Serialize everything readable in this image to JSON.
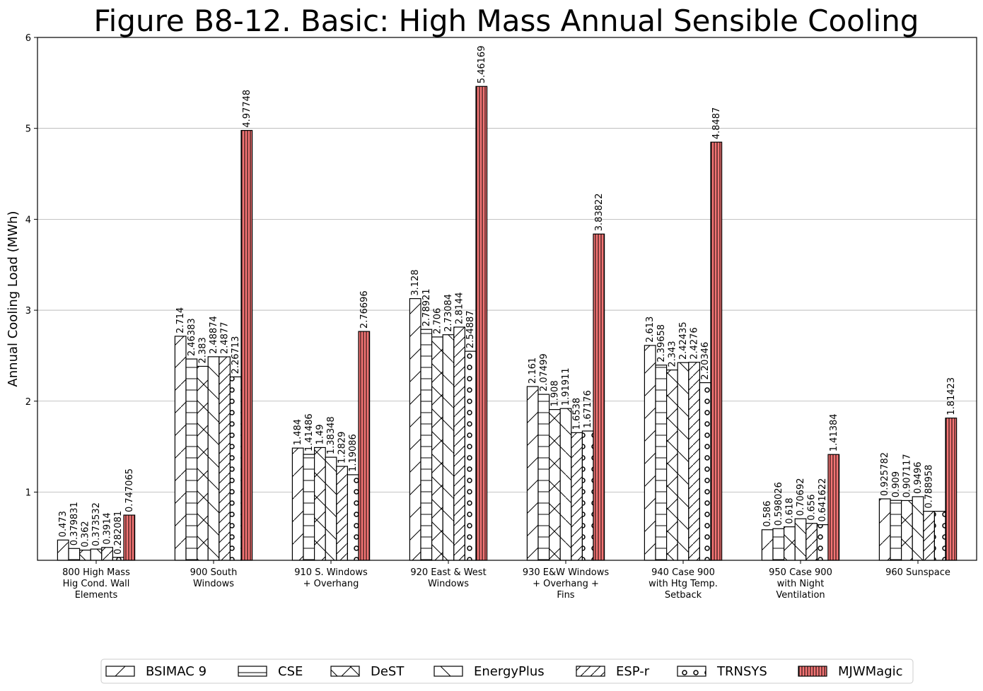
{
  "chart_data": {
    "type": "bar",
    "title": "Figure B8-12.  Basic: High Mass Annual Sensible Cooling",
    "xlabel": "",
    "ylabel": "Annual Cooling Load (MWh)",
    "ylim": [
      0.25,
      6
    ],
    "yticks": [
      1,
      2,
      3,
      4,
      5,
      6
    ],
    "grid": "y",
    "legend_position": "bottom",
    "categories": [
      "800 High Mass\nHig Cond. Wall\nElements",
      "900 South\nWindows",
      "910 S. Windows\n+ Overhang",
      "920 East & West\nWindows",
      "930 E&W Windows\n+ Overhang +\nFins",
      "940 Case 900\nwith Htg Temp.\nSetback",
      "950 Case 900\nwith Night\nVentilation",
      "960 Sunspace"
    ],
    "series": [
      {
        "name": "BSIMAC 9",
        "color": "#ffffff",
        "pattern": "slash",
        "values": [
          0.473,
          2.714,
          1.484,
          3.128,
          2.161,
          2.613,
          0.586,
          0.925782
        ],
        "labels": [
          "0.473",
          "2.714",
          "1.484",
          "3.128",
          "2.161",
          "2.613",
          "0.586",
          "0.925782"
        ]
      },
      {
        "name": "CSE",
        "color": "#ffffff",
        "pattern": "hline",
        "values": [
          0.379831,
          2.46383,
          1.41486,
          2.78921,
          2.07499,
          2.39658,
          0.598026,
          0.909
        ],
        "labels": [
          "0.379831",
          "2.46383",
          "1.41486",
          "2.78921",
          "2.07499",
          "2.39658",
          "0.598026",
          "0.909"
        ]
      },
      {
        "name": "DeST",
        "color": "#ffffff",
        "pattern": "cross",
        "values": [
          0.362,
          2.383,
          1.49,
          2.706,
          1.908,
          2.343,
          0.618,
          0.907117
        ],
        "labels": [
          "0.362",
          "2.383",
          "1.49",
          "2.706",
          "1.908",
          "2.343",
          "0.618",
          "0.907117"
        ]
      },
      {
        "name": "EnergyPlus",
        "color": "#ffffff",
        "pattern": "backslash",
        "values": [
          0.373532,
          2.48874,
          1.38348,
          2.73084,
          1.91911,
          2.42435,
          0.70692,
          0.9496
        ],
        "labels": [
          "0.373532",
          "2.48874",
          "1.38348",
          "2.73084",
          "1.91911",
          "2.42435",
          "0.70692",
          "0.9496"
        ]
      },
      {
        "name": "ESP-r",
        "color": "#ffffff",
        "pattern": "dense-slash",
        "values": [
          0.3914,
          2.4877,
          1.2829,
          2.8144,
          1.6538,
          2.4276,
          0.656,
          0.788958
        ],
        "labels": [
          "0.3914",
          "2.4877",
          "1.2829",
          "2.8144",
          "1.6538",
          "2.4276",
          "0.656",
          "0.788958"
        ]
      },
      {
        "name": "TRNSYS",
        "color": "#ffffff",
        "pattern": "circles",
        "values": [
          0.282081,
          2.26713,
          1.19086,
          2.54887,
          1.67176,
          2.20346,
          0.641622,
          0.788958
        ],
        "labels": [
          "0.282081",
          "2.26713",
          "1.19086",
          "2.54887",
          "1.67176",
          "2.20346",
          "0.641622",
          ""
        ]
      },
      {
        "name": "MJWMagic",
        "color": "#f47575",
        "pattern": "vline",
        "values": [
          0.747065,
          4.97748,
          2.76696,
          5.46169,
          3.83822,
          4.8487,
          1.41384,
          1.81423
        ],
        "labels": [
          "0.747065",
          "4.97748",
          "2.76696",
          "5.46169",
          "3.83822",
          "4.8487",
          "1.41384",
          "1.81423"
        ]
      }
    ]
  }
}
